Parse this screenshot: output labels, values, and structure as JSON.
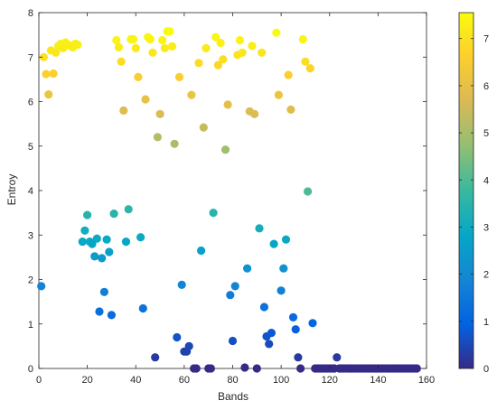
{
  "chart_data": {
    "type": "scatter",
    "title": "",
    "xlabel": "Bands",
    "ylabel": "Entroy",
    "xlim": [
      0,
      160
    ],
    "ylim": [
      0,
      8
    ],
    "xticks": [
      0,
      20,
      40,
      60,
      80,
      100,
      120,
      140,
      160
    ],
    "yticks": [
      0,
      1,
      2,
      3,
      4,
      5,
      6,
      7,
      8
    ],
    "grid": false,
    "colormap": "parula",
    "colorbar": {
      "range": [
        0,
        7.55
      ],
      "ticks": [
        0,
        1,
        2,
        3,
        4,
        5,
        6,
        7
      ],
      "colors": [
        "#352a87",
        "#0363e1",
        "#1485d4",
        "#06a7c6",
        "#38b99e",
        "#92bf73",
        "#d9ba56",
        "#fcce2e",
        "#f9fb0e"
      ]
    },
    "points": [
      [
        1,
        1.85
      ],
      [
        2,
        7.0
      ],
      [
        3,
        6.62
      ],
      [
        4,
        6.16
      ],
      [
        5,
        7.15
      ],
      [
        6,
        6.63
      ],
      [
        7,
        7.1
      ],
      [
        8,
        7.25
      ],
      [
        9,
        7.3
      ],
      [
        10,
        7.2
      ],
      [
        11,
        7.33
      ],
      [
        12,
        7.28
      ],
      [
        13,
        7.25
      ],
      [
        14,
        7.22
      ],
      [
        15,
        7.3
      ],
      [
        16,
        7.28
      ],
      [
        18,
        2.85
      ],
      [
        19,
        3.1
      ],
      [
        20,
        3.45
      ],
      [
        21,
        2.85
      ],
      [
        22,
        2.8
      ],
      [
        23,
        2.52
      ],
      [
        24,
        2.92
      ],
      [
        25,
        1.28
      ],
      [
        26,
        2.48
      ],
      [
        27,
        1.72
      ],
      [
        28,
        2.9
      ],
      [
        29,
        2.62
      ],
      [
        30,
        1.2
      ],
      [
        31,
        3.48
      ],
      [
        32,
        7.38
      ],
      [
        33,
        7.22
      ],
      [
        34,
        6.9
      ],
      [
        35,
        5.8
      ],
      [
        36,
        2.85
      ],
      [
        37,
        3.58
      ],
      [
        38,
        7.4
      ],
      [
        39,
        7.4
      ],
      [
        40,
        7.2
      ],
      [
        41,
        6.55
      ],
      [
        42,
        2.95
      ],
      [
        43,
        1.35
      ],
      [
        44,
        6.05
      ],
      [
        45,
        7.45
      ],
      [
        46,
        7.4
      ],
      [
        47,
        7.1
      ],
      [
        48,
        0.25
      ],
      [
        49,
        5.2
      ],
      [
        50,
        5.72
      ],
      [
        51,
        7.38
      ],
      [
        52,
        7.2
      ],
      [
        53,
        7.58
      ],
      [
        54,
        7.58
      ],
      [
        55,
        7.24
      ],
      [
        56,
        5.05
      ],
      [
        57,
        0.7
      ],
      [
        58,
        6.55
      ],
      [
        59,
        1.88
      ],
      [
        60,
        0.38
      ],
      [
        61,
        0.38
      ],
      [
        62,
        0.5
      ],
      [
        63,
        6.15
      ],
      [
        64,
        0.0
      ],
      [
        65,
        0.0
      ],
      [
        66,
        6.87
      ],
      [
        67,
        2.65
      ],
      [
        68,
        5.42
      ],
      [
        69,
        7.2
      ],
      [
        70,
        0.0
      ],
      [
        71,
        0.0
      ],
      [
        72,
        3.5
      ],
      [
        73,
        7.45
      ],
      [
        74,
        6.82
      ],
      [
        75,
        7.32
      ],
      [
        76,
        6.95
      ],
      [
        77,
        4.92
      ],
      [
        78,
        5.93
      ],
      [
        79,
        1.65
      ],
      [
        80,
        0.62
      ],
      [
        81,
        1.85
      ],
      [
        82,
        7.05
      ],
      [
        83,
        7.38
      ],
      [
        84,
        7.1
      ],
      [
        85,
        0.02
      ],
      [
        86,
        2.25
      ],
      [
        87,
        5.78
      ],
      [
        88,
        7.25
      ],
      [
        89,
        5.72
      ],
      [
        90,
        0.0
      ],
      [
        91,
        3.15
      ],
      [
        92,
        7.1
      ],
      [
        93,
        1.38
      ],
      [
        94,
        0.72
      ],
      [
        95,
        0.55
      ],
      [
        96,
        0.8
      ],
      [
        97,
        2.8
      ],
      [
        98,
        7.55
      ],
      [
        99,
        6.15
      ],
      [
        100,
        1.75
      ],
      [
        101,
        2.25
      ],
      [
        102,
        2.9
      ],
      [
        103,
        6.6
      ],
      [
        104,
        5.82
      ],
      [
        105,
        1.15
      ],
      [
        106,
        0.88
      ],
      [
        107,
        0.25
      ],
      [
        108,
        0.0
      ],
      [
        109,
        7.4
      ],
      [
        110,
        6.9
      ],
      [
        111,
        3.98
      ],
      [
        112,
        6.75
      ],
      [
        113,
        1.02
      ],
      [
        114,
        0.0
      ],
      [
        115,
        0.0
      ],
      [
        116,
        0.0
      ],
      [
        117,
        0.0
      ],
      [
        118,
        0.0
      ],
      [
        119,
        0.0
      ],
      [
        120,
        0.0
      ],
      [
        121,
        0.0
      ],
      [
        122,
        0.0
      ],
      [
        123,
        0.25
      ],
      [
        124,
        0.0
      ],
      [
        125,
        0.0
      ],
      [
        126,
        0.0
      ],
      [
        127,
        0.0
      ],
      [
        128,
        0.0
      ],
      [
        129,
        0.0
      ],
      [
        130,
        0.0
      ],
      [
        131,
        0.0
      ],
      [
        132,
        0.0
      ],
      [
        133,
        0.0
      ],
      [
        134,
        0.0
      ],
      [
        135,
        0.0
      ],
      [
        136,
        0.0
      ],
      [
        137,
        0.0
      ],
      [
        138,
        0.0
      ],
      [
        139,
        0.0
      ],
      [
        140,
        0.0
      ],
      [
        141,
        0.0
      ],
      [
        142,
        0.0
      ],
      [
        143,
        0.0
      ],
      [
        144,
        0.0
      ],
      [
        145,
        0.0
      ],
      [
        146,
        0.0
      ],
      [
        147,
        0.0
      ],
      [
        148,
        0.0
      ],
      [
        149,
        0.0
      ],
      [
        150,
        0.0
      ],
      [
        151,
        0.0
      ],
      [
        152,
        0.0
      ],
      [
        153,
        0.0
      ],
      [
        154,
        0.0
      ],
      [
        155,
        0.0
      ],
      [
        156,
        0.0
      ]
    ]
  }
}
